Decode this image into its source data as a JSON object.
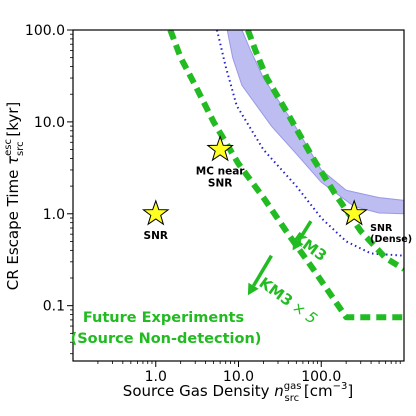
{
  "chart_data": {
    "type": "line",
    "title": "",
    "xlabel": "Source Gas Density n_src^gas [cm^-3]",
    "xlabel_parts": {
      "main": "Source Gas Density ",
      "sym": "n",
      "sup": "gas",
      "sub": "src",
      "unit_pre": " [cm",
      "unit_sup": "−3",
      "unit_post": "]"
    },
    "ylabel": "CR Escape Time τ_src^esc [kyr]",
    "ylabel_parts": {
      "main": "CR Escape Time ",
      "sym": "τ",
      "sup": "esc",
      "sub": "src",
      "unit": " [kyr]"
    },
    "xscale": "log",
    "yscale": "log",
    "xlim": [
      0.1,
      1000
    ],
    "ylim": [
      0.025,
      100
    ],
    "x_ticks": [
      {
        "value": 1,
        "label": "1.0"
      },
      {
        "value": 10,
        "label": "10.0"
      },
      {
        "value": 100,
        "label": "100.0"
      }
    ],
    "y_ticks": [
      {
        "value": 0.1,
        "label": "0.1"
      },
      {
        "value": 1,
        "label": "1.0"
      },
      {
        "value": 10,
        "label": "10.0"
      },
      {
        "value": 100,
        "label": "100.0"
      }
    ],
    "band": {
      "color": "#a7a7ee",
      "upper": [
        [
          11,
          100
        ],
        [
          14,
          60
        ],
        [
          20,
          30
        ],
        [
          45,
          10
        ],
        [
          100,
          3
        ],
        [
          200,
          1.8
        ],
        [
          500,
          1.5
        ],
        [
          1000,
          1.4
        ]
      ],
      "lower": [
        [
          7.3,
          100
        ],
        [
          8.5,
          50
        ],
        [
          11,
          25
        ],
        [
          25,
          9
        ],
        [
          50,
          4.5
        ],
        [
          100,
          2.2
        ],
        [
          250,
          1.2
        ],
        [
          500,
          1.02
        ],
        [
          1000,
          1.0
        ]
      ]
    },
    "series": [
      {
        "color": "#2222cc",
        "style": "dotted",
        "points": [
          [
            5.5,
            100
          ],
          [
            7,
            40
          ],
          [
            9.5,
            15
          ],
          [
            20,
            5
          ],
          [
            50,
            2
          ],
          [
            100,
            0.9
          ],
          [
            200,
            0.5
          ],
          [
            400,
            0.37
          ],
          [
            1000,
            0.35
          ]
        ]
      },
      {
        "color": "#22bb22",
        "style": "dashed-thick",
        "points": [
          [
            13,
            100
          ],
          [
            16,
            60
          ],
          [
            22,
            30
          ],
          [
            40,
            12
          ],
          [
            80,
            4
          ],
          [
            150,
            1.6
          ],
          [
            300,
            0.65
          ],
          [
            600,
            0.33
          ],
          [
            1000,
            0.25
          ]
        ]
      },
      {
        "color": "#22bb22",
        "style": "dashed-thick",
        "points": [
          [
            1.5,
            100
          ],
          [
            2,
            50
          ],
          [
            3,
            25
          ],
          [
            5,
            10
          ],
          [
            10,
            3.5
          ],
          [
            20,
            1.5
          ],
          [
            40,
            0.6
          ],
          [
            80,
            0.25
          ],
          [
            140,
            0.12
          ],
          [
            200,
            0.075
          ],
          [
            1000,
            0.075
          ]
        ]
      }
    ],
    "markers": [
      {
        "x": 1.0,
        "y": 1.0,
        "label": "SNR",
        "label_lines": [
          "SNR"
        ],
        "label_pos": "below"
      },
      {
        "x": 6.0,
        "y": 5.0,
        "label": "MC near SNR",
        "label_lines": [
          "MC near",
          "SNR"
        ],
        "label_pos": "below"
      },
      {
        "x": 250,
        "y": 1.0,
        "label": "SNR (Dense)",
        "label_lines": [
          "SNR",
          "(Dense)"
        ],
        "label_pos": "below-right"
      }
    ],
    "arrows": [
      {
        "from": [
          75,
          0.83
        ],
        "to": [
          45,
          0.4
        ],
        "label": "KM3"
      },
      {
        "from": [
          25,
          0.35
        ],
        "to": [
          13,
          0.13
        ],
        "label": "KM3 × 5",
        "label_parts": {
          "main": "KM3",
          "times": "×",
          "factor": "5"
        }
      }
    ],
    "annotation": {
      "lines": [
        "Future Experiments",
        "(Source Non-detection)"
      ]
    },
    "marker_color": "#ffff22",
    "green": "#22bb22"
  }
}
